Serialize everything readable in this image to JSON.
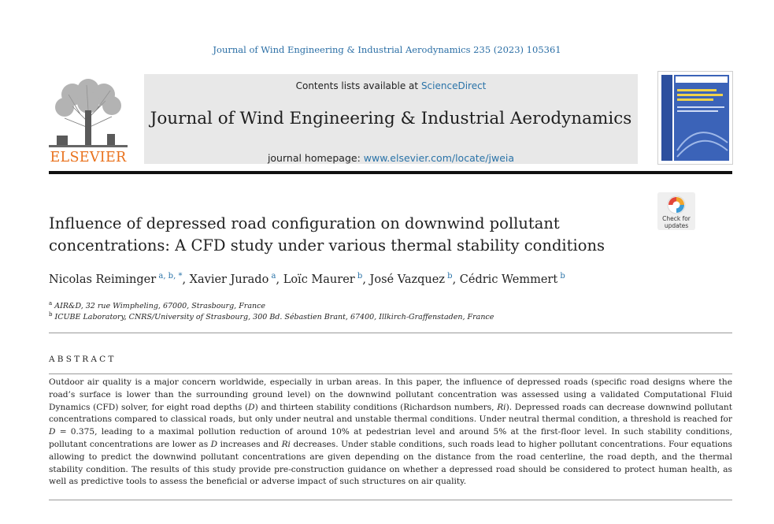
{
  "citation": "Journal of Wind Engineering & Industrial Aerodynamics 235 (2023) 105361",
  "header": {
    "contents_prefix": "Contents lists available at ",
    "contents_link": "ScienceDirect",
    "journal_title": "Journal of Wind Engineering & Industrial Aerodynamics",
    "homepage_prefix": "journal homepage: ",
    "homepage_link": "www.elsevier.com/locate/jweia",
    "publisher_logo_text": "ELSEVIER",
    "crossmark_label": "Check for updates"
  },
  "article": {
    "title_line1": "Influence of depressed road configuration on downwind pollutant",
    "title_line2": "concentrations: A CFD study under various thermal stability conditions",
    "authors": [
      {
        "name": "Nicolas Reiminger",
        "sup": "a, b, *"
      },
      {
        "name": "Xavier Jurado",
        "sup": "a"
      },
      {
        "name": "Loïc Maurer",
        "sup": "b"
      },
      {
        "name": "José Vazquez",
        "sup": "b"
      },
      {
        "name": "Cédric Wemmert",
        "sup": "b"
      }
    ],
    "affiliations": [
      {
        "mark": "a",
        "text": "AIR&D, 32 rue Wimpheling, 67000, Strasbourg, France"
      },
      {
        "mark": "b",
        "text": "ICUBE Laboratory, CNRS/University of Strasbourg, 300 Bd. Sébastien Brant, 67400, Illkirch-Graffenstaden, France"
      }
    ]
  },
  "abstract": {
    "heading": "ABSTRACT",
    "p1": "Outdoor air quality is a major concern worldwide, especially in urban areas. In this paper, the influence of depressed roads (specific road designs where the road’s surface is lower than the surrounding ground level) on the downwind pollutant concentration was assessed using a validated Computational Fluid Dynamics (CFD) solver, for eight road depths (",
    "v_D": "D",
    "p2": ") and thirteen stability conditions (Richardson numbers, ",
    "v_Ri": "Ri",
    "p3": "). Depressed roads can decrease downwind pollutant concentrations compared to classical roads, but only under neutral and unstable thermal conditions. Under neutral thermal condition, a threshold is reached for ",
    "v_D2": "D",
    "p4": " = 0.375, leading to a maximal pollution reduction of around 10% at pedestrian level and around 5% at the first-floor level. In such stability conditions, pollutant concentrations are lower as ",
    "v_D3": "D",
    "p5": " increases and ",
    "v_Ri2": "Ri",
    "p6": " decreases. Under stable conditions, such roads lead to higher pollutant concentrations. Four equations allowing to predict the downwind pollutant concentrations are given depending on the distance from the road centerline, the road depth, and the thermal stability condition. The results of this study provide pre-construction guidance on whether a depressed road should be considered to protect human health, as well as predictive tools to assess the beneficial or adverse impact of such structures on air quality."
  }
}
